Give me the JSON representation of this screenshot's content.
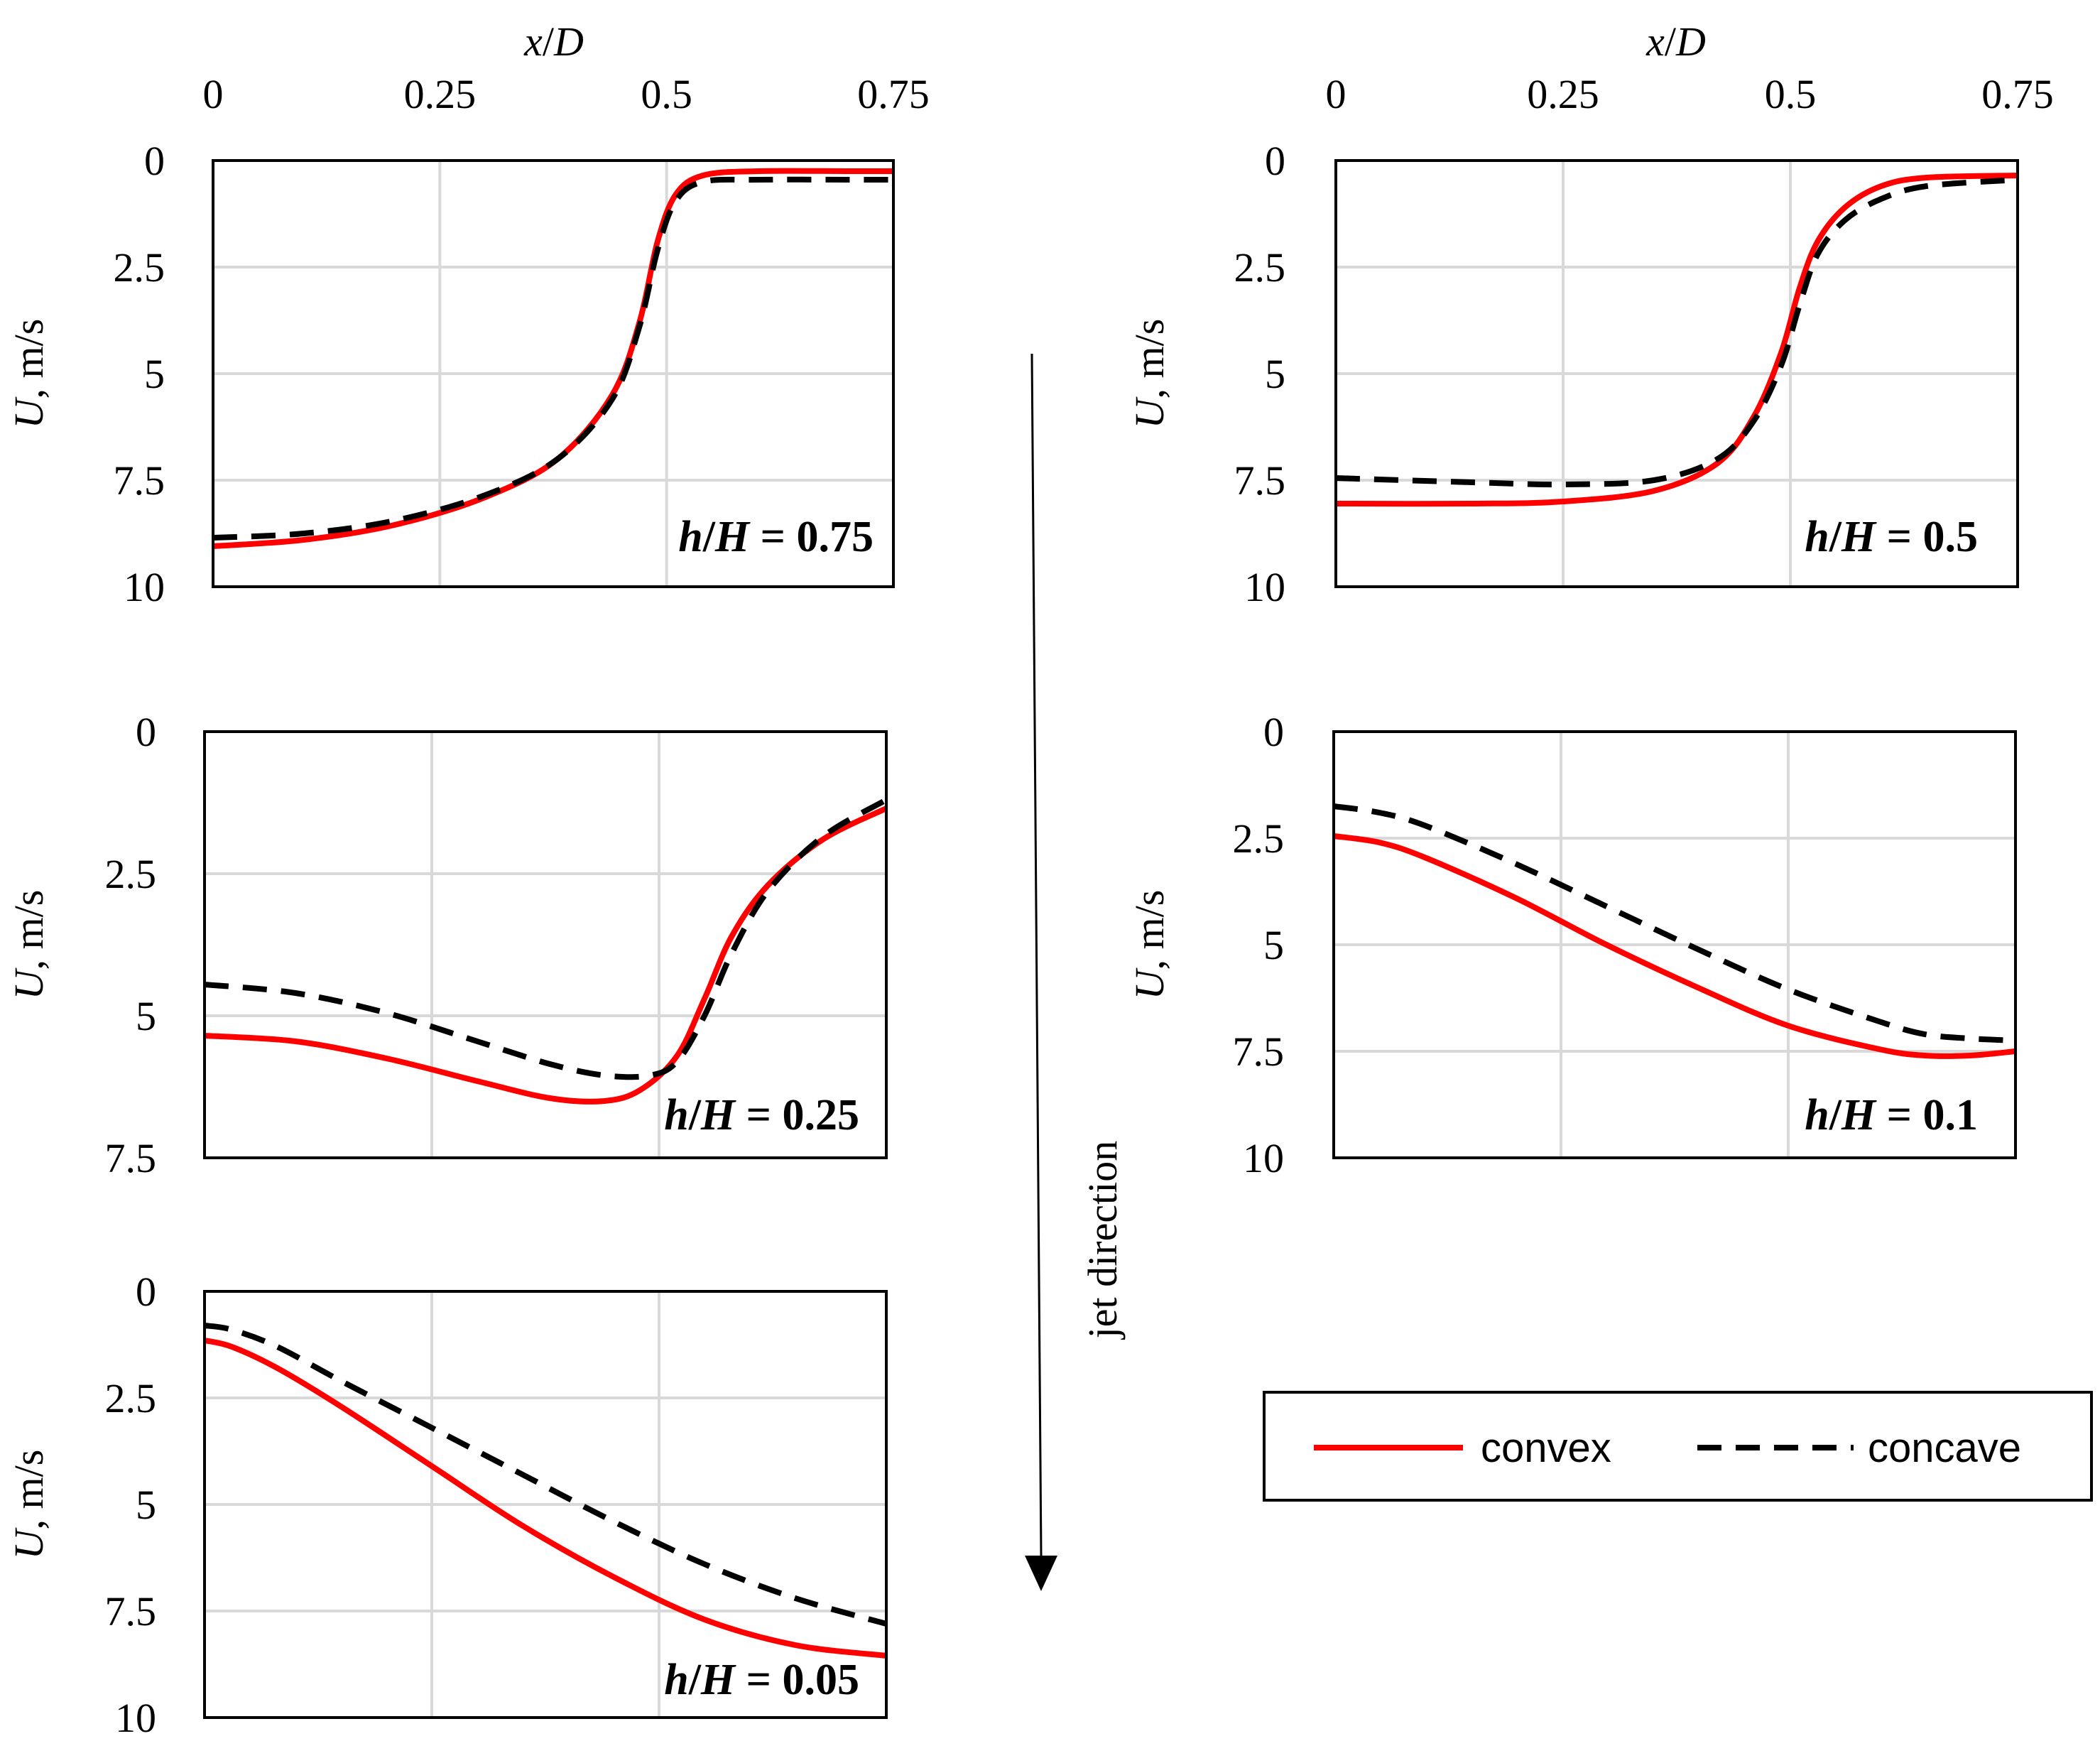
{
  "chart_data": [
    {
      "id": "p1",
      "type": "line",
      "title": "",
      "annotation_html": "<tspan font-style=\"italic\">h</tspan>/<tspan font-style=\"italic\">H</tspan> = 0.75",
      "annotation": "h/H = 0.75",
      "xlabel": "x/D",
      "ylabel": "U, m/s",
      "xlim": [
        0,
        0.75
      ],
      "ylim": [
        0,
        10
      ],
      "y_inverted": true,
      "x_ticks": [
        "0",
        "0.25",
        "0.5",
        "0.75"
      ],
      "y_ticks": [
        "0",
        "2.5",
        "5",
        "7.5",
        "10"
      ],
      "show_x_ticks": true,
      "grid": true,
      "series": [
        {
          "name": "convex",
          "style": "solid",
          "color": "#ff0000",
          "points": [
            [
              0,
              9.05
            ],
            [
              0.1,
              8.9
            ],
            [
              0.2,
              8.55
            ],
            [
              0.3,
              7.9
            ],
            [
              0.38,
              7.0
            ],
            [
              0.44,
              5.5
            ],
            [
              0.47,
              3.8
            ],
            [
              0.49,
              1.9
            ],
            [
              0.51,
              0.8
            ],
            [
              0.54,
              0.35
            ],
            [
              0.6,
              0.25
            ],
            [
              0.7,
              0.25
            ],
            [
              0.75,
              0.25
            ]
          ]
        },
        {
          "name": "concave",
          "style": "dashed",
          "color": "#000000",
          "points": [
            [
              0,
              8.85
            ],
            [
              0.1,
              8.75
            ],
            [
              0.2,
              8.45
            ],
            [
              0.3,
              7.85
            ],
            [
              0.38,
              7.0
            ],
            [
              0.44,
              5.6
            ],
            [
              0.47,
              3.9
            ],
            [
              0.49,
              2.1
            ],
            [
              0.51,
              0.95
            ],
            [
              0.54,
              0.5
            ],
            [
              0.6,
              0.45
            ],
            [
              0.7,
              0.45
            ],
            [
              0.75,
              0.45
            ]
          ]
        }
      ]
    },
    {
      "id": "p2",
      "type": "line",
      "title": "",
      "annotation_html": "<tspan font-style=\"italic\">h</tspan>/<tspan font-style=\"italic\">H</tspan> = 0.5",
      "annotation": "h/H = 0.5",
      "xlabel": "x/D",
      "ylabel": "U, m/s",
      "xlim": [
        0,
        0.75
      ],
      "ylim": [
        0,
        10
      ],
      "y_inverted": true,
      "x_ticks": [
        "0",
        "0.25",
        "0.5",
        "0.75"
      ],
      "y_ticks": [
        "0",
        "2.5",
        "5",
        "7.5",
        "10"
      ],
      "show_x_ticks": true,
      "grid": true,
      "series": [
        {
          "name": "convex",
          "style": "solid",
          "color": "#ff0000",
          "points": [
            [
              0,
              8.05
            ],
            [
              0.15,
              8.05
            ],
            [
              0.25,
              8.0
            ],
            [
              0.35,
              7.75
            ],
            [
              0.42,
              7.1
            ],
            [
              0.46,
              6.0
            ],
            [
              0.49,
              4.5
            ],
            [
              0.51,
              3.0
            ],
            [
              0.53,
              1.9
            ],
            [
              0.56,
              1.1
            ],
            [
              0.6,
              0.6
            ],
            [
              0.65,
              0.4
            ],
            [
              0.75,
              0.35
            ]
          ]
        },
        {
          "name": "concave",
          "style": "dashed",
          "color": "#000000",
          "points": [
            [
              0,
              7.45
            ],
            [
              0.15,
              7.55
            ],
            [
              0.25,
              7.6
            ],
            [
              0.35,
              7.5
            ],
            [
              0.42,
              7.0
            ],
            [
              0.46,
              6.1
            ],
            [
              0.49,
              4.8
            ],
            [
              0.51,
              3.4
            ],
            [
              0.53,
              2.2
            ],
            [
              0.56,
              1.4
            ],
            [
              0.6,
              0.9
            ],
            [
              0.65,
              0.6
            ],
            [
              0.75,
              0.45
            ]
          ]
        }
      ]
    },
    {
      "id": "p3",
      "type": "line",
      "title": "",
      "annotation_html": "<tspan font-style=\"italic\">h</tspan>/<tspan font-style=\"italic\">H</tspan> = 0.25",
      "annotation": "h/H = 0.25",
      "xlabel": "",
      "ylabel": "U, m/s",
      "xlim": [
        0,
        0.75
      ],
      "ylim": [
        0,
        7.5
      ],
      "y_inverted": true,
      "x_ticks": [
        "0",
        "0.25",
        "0.5",
        "0.75"
      ],
      "y_ticks": [
        "0",
        "2.5",
        "5",
        "7.5"
      ],
      "show_x_ticks": false,
      "grid": true,
      "series": [
        {
          "name": "convex",
          "style": "solid",
          "color": "#ff0000",
          "points": [
            [
              0,
              5.35
            ],
            [
              0.1,
              5.45
            ],
            [
              0.2,
              5.75
            ],
            [
              0.3,
              6.15
            ],
            [
              0.38,
              6.45
            ],
            [
              0.44,
              6.5
            ],
            [
              0.48,
              6.3
            ],
            [
              0.52,
              5.7
            ],
            [
              0.55,
              4.7
            ],
            [
              0.58,
              3.6
            ],
            [
              0.62,
              2.7
            ],
            [
              0.68,
              1.9
            ],
            [
              0.75,
              1.35
            ]
          ]
        },
        {
          "name": "concave",
          "style": "dashed",
          "color": "#000000",
          "points": [
            [
              0,
              4.45
            ],
            [
              0.1,
              4.6
            ],
            [
              0.2,
              4.95
            ],
            [
              0.3,
              5.45
            ],
            [
              0.38,
              5.85
            ],
            [
              0.44,
              6.05
            ],
            [
              0.49,
              6.05
            ],
            [
              0.52,
              5.8
            ],
            [
              0.55,
              5.0
            ],
            [
              0.58,
              3.9
            ],
            [
              0.62,
              2.8
            ],
            [
              0.68,
              1.85
            ],
            [
              0.75,
              1.2
            ]
          ]
        }
      ]
    },
    {
      "id": "p4",
      "type": "line",
      "title": "",
      "annotation_html": "<tspan font-style=\"italic\">h</tspan>/<tspan font-style=\"italic\">H</tspan> = 0.1",
      "annotation": "h/H = 0.1",
      "xlabel": "",
      "ylabel": "U, m/s",
      "xlim": [
        0,
        0.75
      ],
      "ylim": [
        0,
        10
      ],
      "y_inverted": true,
      "x_ticks": [
        "0",
        "0.25",
        "0.5",
        "0.75"
      ],
      "y_ticks": [
        "0",
        "2.5",
        "5",
        "7.5",
        "10"
      ],
      "show_x_ticks": false,
      "grid": true,
      "series": [
        {
          "name": "convex",
          "style": "solid",
          "color": "#ff0000",
          "points": [
            [
              0,
              2.45
            ],
            [
              0.05,
              2.6
            ],
            [
              0.1,
              2.95
            ],
            [
              0.2,
              3.9
            ],
            [
              0.3,
              5.0
            ],
            [
              0.4,
              6.0
            ],
            [
              0.5,
              6.9
            ],
            [
              0.6,
              7.45
            ],
            [
              0.65,
              7.6
            ],
            [
              0.7,
              7.6
            ],
            [
              0.75,
              7.5
            ]
          ]
        },
        {
          "name": "concave",
          "style": "dashed",
          "color": "#000000",
          "points": [
            [
              0,
              1.75
            ],
            [
              0.05,
              1.9
            ],
            [
              0.1,
              2.2
            ],
            [
              0.2,
              3.1
            ],
            [
              0.3,
              4.1
            ],
            [
              0.4,
              5.1
            ],
            [
              0.5,
              6.05
            ],
            [
              0.6,
              6.8
            ],
            [
              0.65,
              7.1
            ],
            [
              0.7,
              7.2
            ],
            [
              0.75,
              7.25
            ]
          ]
        }
      ]
    },
    {
      "id": "p5",
      "type": "line",
      "title": "",
      "annotation_html": "<tspan font-style=\"italic\">h</tspan>/<tspan font-style=\"italic\">H</tspan> = 0.05",
      "annotation": "h/H = 0.05",
      "xlabel": "",
      "ylabel": "U, m/s",
      "xlim": [
        0,
        0.75
      ],
      "ylim": [
        0,
        10
      ],
      "y_inverted": true,
      "x_ticks": [
        "0",
        "0.25",
        "0.5",
        "0.75"
      ],
      "y_ticks": [
        "0",
        "2.5",
        "5",
        "7.5",
        "10"
      ],
      "show_x_ticks": false,
      "grid": true,
      "series": [
        {
          "name": "convex",
          "style": "solid",
          "color": "#ff0000",
          "points": [
            [
              0,
              1.15
            ],
            [
              0.03,
              1.3
            ],
            [
              0.08,
              1.8
            ],
            [
              0.15,
              2.7
            ],
            [
              0.25,
              4.1
            ],
            [
              0.35,
              5.5
            ],
            [
              0.45,
              6.7
            ],
            [
              0.55,
              7.7
            ],
            [
              0.65,
              8.3
            ],
            [
              0.75,
              8.55
            ]
          ]
        },
        {
          "name": "concave",
          "style": "dashed",
          "color": "#000000",
          "points": [
            [
              0,
              0.8
            ],
            [
              0.03,
              0.9
            ],
            [
              0.08,
              1.3
            ],
            [
              0.15,
              2.1
            ],
            [
              0.25,
              3.2
            ],
            [
              0.35,
              4.3
            ],
            [
              0.45,
              5.4
            ],
            [
              0.55,
              6.4
            ],
            [
              0.65,
              7.2
            ],
            [
              0.75,
              7.8
            ]
          ]
        }
      ]
    }
  ],
  "legend": {
    "items": [
      {
        "label": "convex",
        "style": "solid",
        "color": "#ff0000"
      },
      {
        "label": "concave",
        "style": "dashed",
        "color": "#000000"
      }
    ]
  },
  "arrow": {
    "label": "jet direction"
  },
  "colors": {
    "grid": "#d9d9d9",
    "frame": "#000000",
    "convex": "#ff0000",
    "concave": "#000000"
  }
}
